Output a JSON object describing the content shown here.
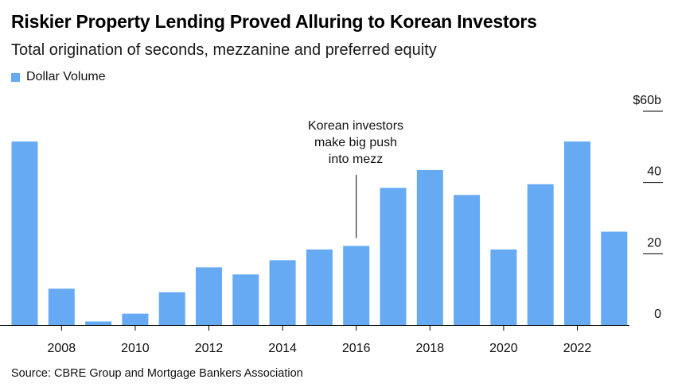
{
  "chart_data": {
    "type": "bar",
    "title": "Riskier Property Lending Proved Alluring to Korean Investors",
    "subtitle": "Total origination of seconds, mezzanine and preferred equity",
    "legend": [
      {
        "name": "Dollar Volume",
        "color": "#65aaf3"
      }
    ],
    "xlabel": "",
    "ylabel": "",
    "ylim": [
      0,
      60
    ],
    "y_ticks": [
      {
        "value": 0,
        "label": "0"
      },
      {
        "value": 20,
        "label": "20"
      },
      {
        "value": 40,
        "label": "40"
      },
      {
        "value": 60,
        "label": "$60b"
      }
    ],
    "x_tick_labels": [
      "2008",
      "2010",
      "2012",
      "2014",
      "2016",
      "2018",
      "2020",
      "2022"
    ],
    "categories": [
      "2007",
      "2008",
      "2009",
      "2010",
      "2011",
      "2012",
      "2013",
      "2014",
      "2015",
      "2016",
      "2017",
      "2018",
      "2019",
      "2020",
      "2021",
      "2022",
      "2023"
    ],
    "series": [
      {
        "name": "Dollar Volume",
        "values": [
          51.5,
          10.2,
          1.0,
          3.2,
          9.2,
          16.2,
          14.2,
          18.2,
          21.2,
          22.2,
          38.5,
          43.5,
          36.5,
          21.2,
          39.5,
          51.5,
          26.2
        ]
      }
    ],
    "annotation": {
      "lines": [
        "Korean investors",
        "make big push",
        "into mezz"
      ],
      "year": "2016"
    },
    "grid": false,
    "legend_position": "top-left"
  },
  "source": "Source: CBRE Group and Mortgage Bankers Association",
  "colors": {
    "bar": "#65aaf3",
    "axis": "#000000"
  }
}
